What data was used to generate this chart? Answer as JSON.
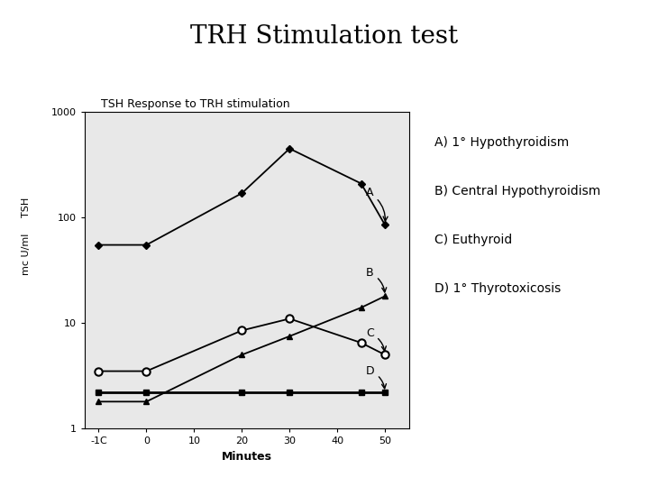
{
  "title": "TRH Stimulation test",
  "chart_title": "TSH Response to TRH stimulation",
  "xlabel": "Minutes",
  "ylabel_line1": "TSH",
  "ylabel_line2": "mc U/ml",
  "x_ticks": [
    -10,
    0,
    10,
    20,
    30,
    40,
    50
  ],
  "x_display_ticks": [
    "-1C",
    "0",
    "10",
    "20",
    "30",
    "40",
    "50"
  ],
  "ylim": [
    1,
    1000
  ],
  "xlim": [
    -13,
    55
  ],
  "curve_A": {
    "x": [
      -10,
      0,
      20,
      30,
      45,
      50
    ],
    "y": [
      55,
      55,
      170,
      450,
      210,
      85
    ],
    "label": "A",
    "marker": "D",
    "markersize": 4,
    "color": "#000000",
    "linestyle": "-",
    "linewidth": 1.3,
    "filled": true
  },
  "curve_B": {
    "x": [
      -10,
      0,
      20,
      30,
      45,
      50
    ],
    "y": [
      1.8,
      1.8,
      5.0,
      7.5,
      14.0,
      18.0
    ],
    "label": "B",
    "marker": "^",
    "markersize": 5,
    "color": "#000000",
    "linestyle": "-",
    "linewidth": 1.3,
    "filled": true
  },
  "curve_C": {
    "x": [
      -10,
      0,
      20,
      30,
      45,
      50
    ],
    "y": [
      3.5,
      3.5,
      8.5,
      11.0,
      6.5,
      5.0
    ],
    "label": "C",
    "marker": "o",
    "markersize": 6,
    "color": "#000000",
    "linestyle": "-",
    "linewidth": 1.3,
    "filled": false
  },
  "curve_D": {
    "x": [
      -10,
      0,
      20,
      30,
      45,
      50
    ],
    "y": [
      2.2,
      2.2,
      2.2,
      2.2,
      2.2,
      2.2
    ],
    "label": "D",
    "marker": "s",
    "markersize": 4,
    "color": "#000000",
    "linestyle": "-",
    "linewidth": 2.0,
    "filled": true
  },
  "text_labels": [
    "A) 1° Hypothyroidism",
    "B) Central Hypothyroidism",
    "C) Euthyroid",
    "D) 1° Thyrotoxicosis"
  ],
  "bg_color": "#e8e8e8",
  "fig_bg_color": "#ffffff",
  "title_fontsize": 20,
  "chart_title_fontsize": 9,
  "label_fontsize": 10,
  "tick_fontsize": 8
}
